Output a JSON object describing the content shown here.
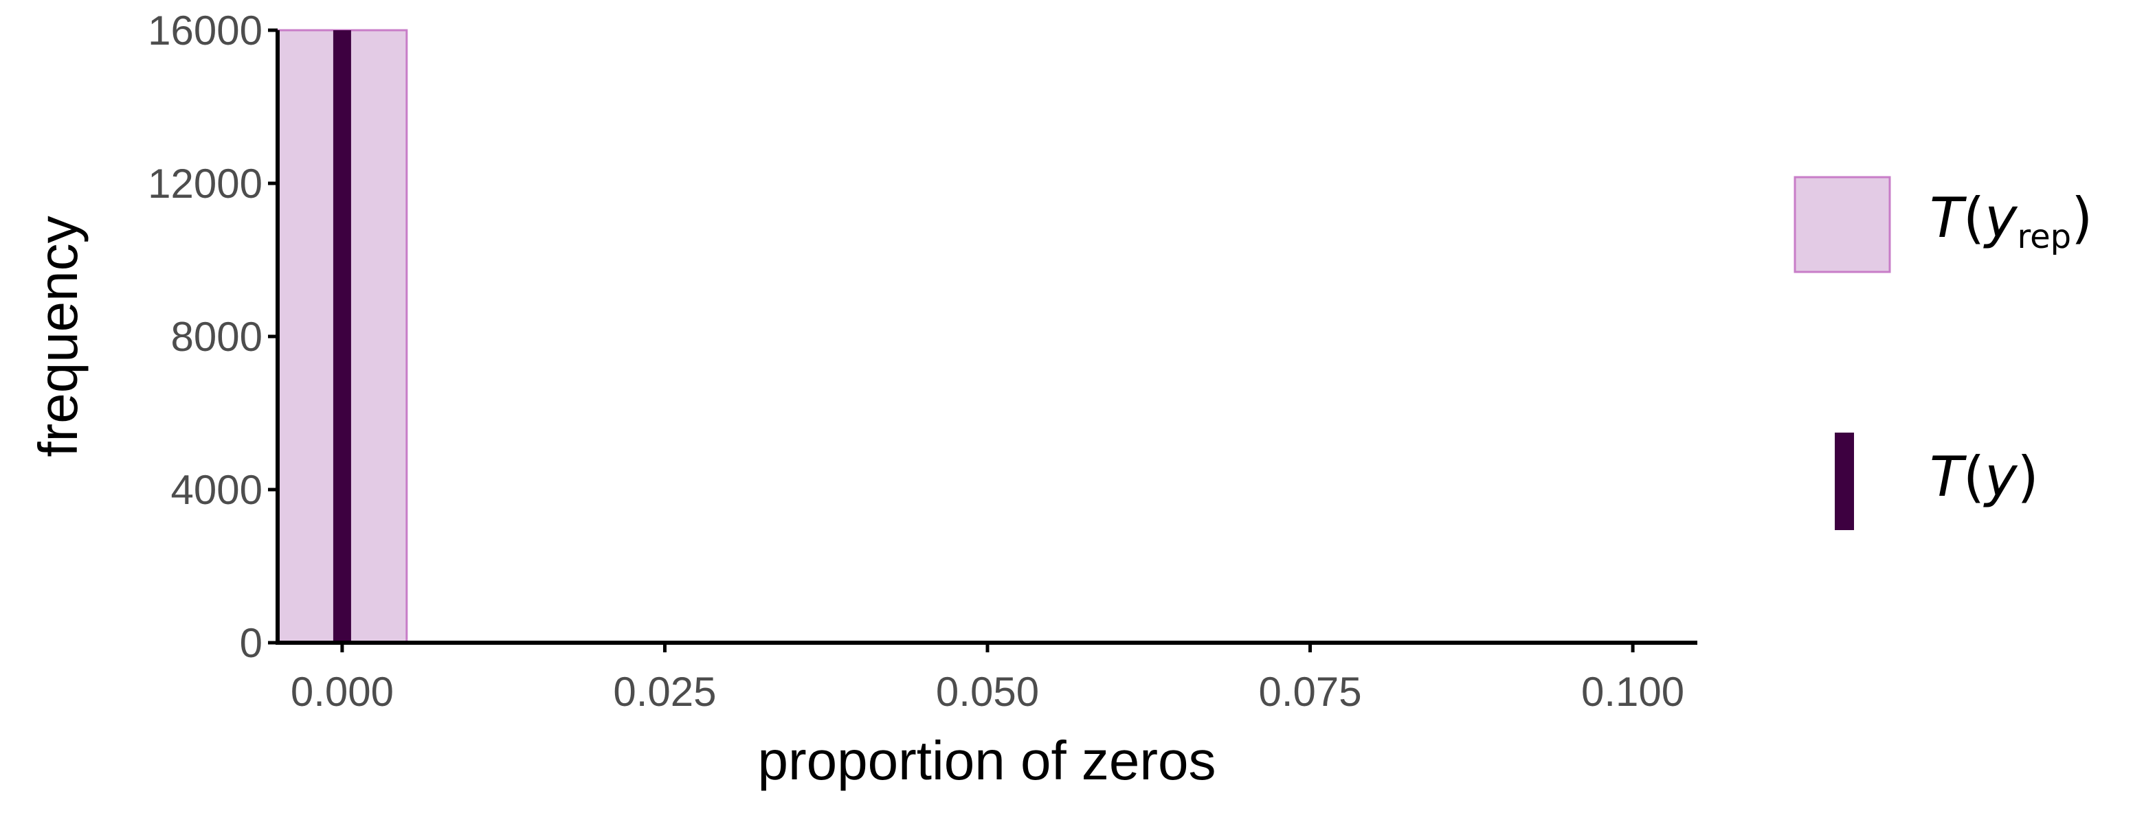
{
  "chart_data": {
    "type": "bar",
    "xlabel": "proportion of zeros",
    "ylabel": "frequency",
    "xlim": [
      -0.005,
      0.105
    ],
    "ylim": [
      0,
      16000
    ],
    "xticks": [
      0,
      0.025,
      0.05,
      0.075,
      0.1
    ],
    "xtick_labels": [
      "0.000",
      "0.025",
      "0.050",
      "0.075",
      "0.100"
    ],
    "yticks": [
      0,
      4000,
      8000,
      12000,
      16000
    ],
    "ytick_labels": [
      "0",
      "4000",
      "8000",
      "12000",
      "16000"
    ],
    "bins": [
      {
        "x0": -0.005,
        "x1": 0.005,
        "count": 16000
      }
    ],
    "observed": {
      "value": 0
    },
    "legend": {
      "position": "right",
      "items": [
        {
          "symbol": "T",
          "subscript": "rep",
          "var": "y",
          "kind": "histogram"
        },
        {
          "symbol": "T",
          "subscript": "",
          "var": "y",
          "kind": "line"
        }
      ]
    },
    "colors": {
      "bar_fill": "#e3cbe5",
      "bar_stroke": "#c87dc8",
      "observed_line": "#3d0040",
      "axis": "#000000",
      "tick_text": "#4d4d4d"
    },
    "grid": false
  }
}
